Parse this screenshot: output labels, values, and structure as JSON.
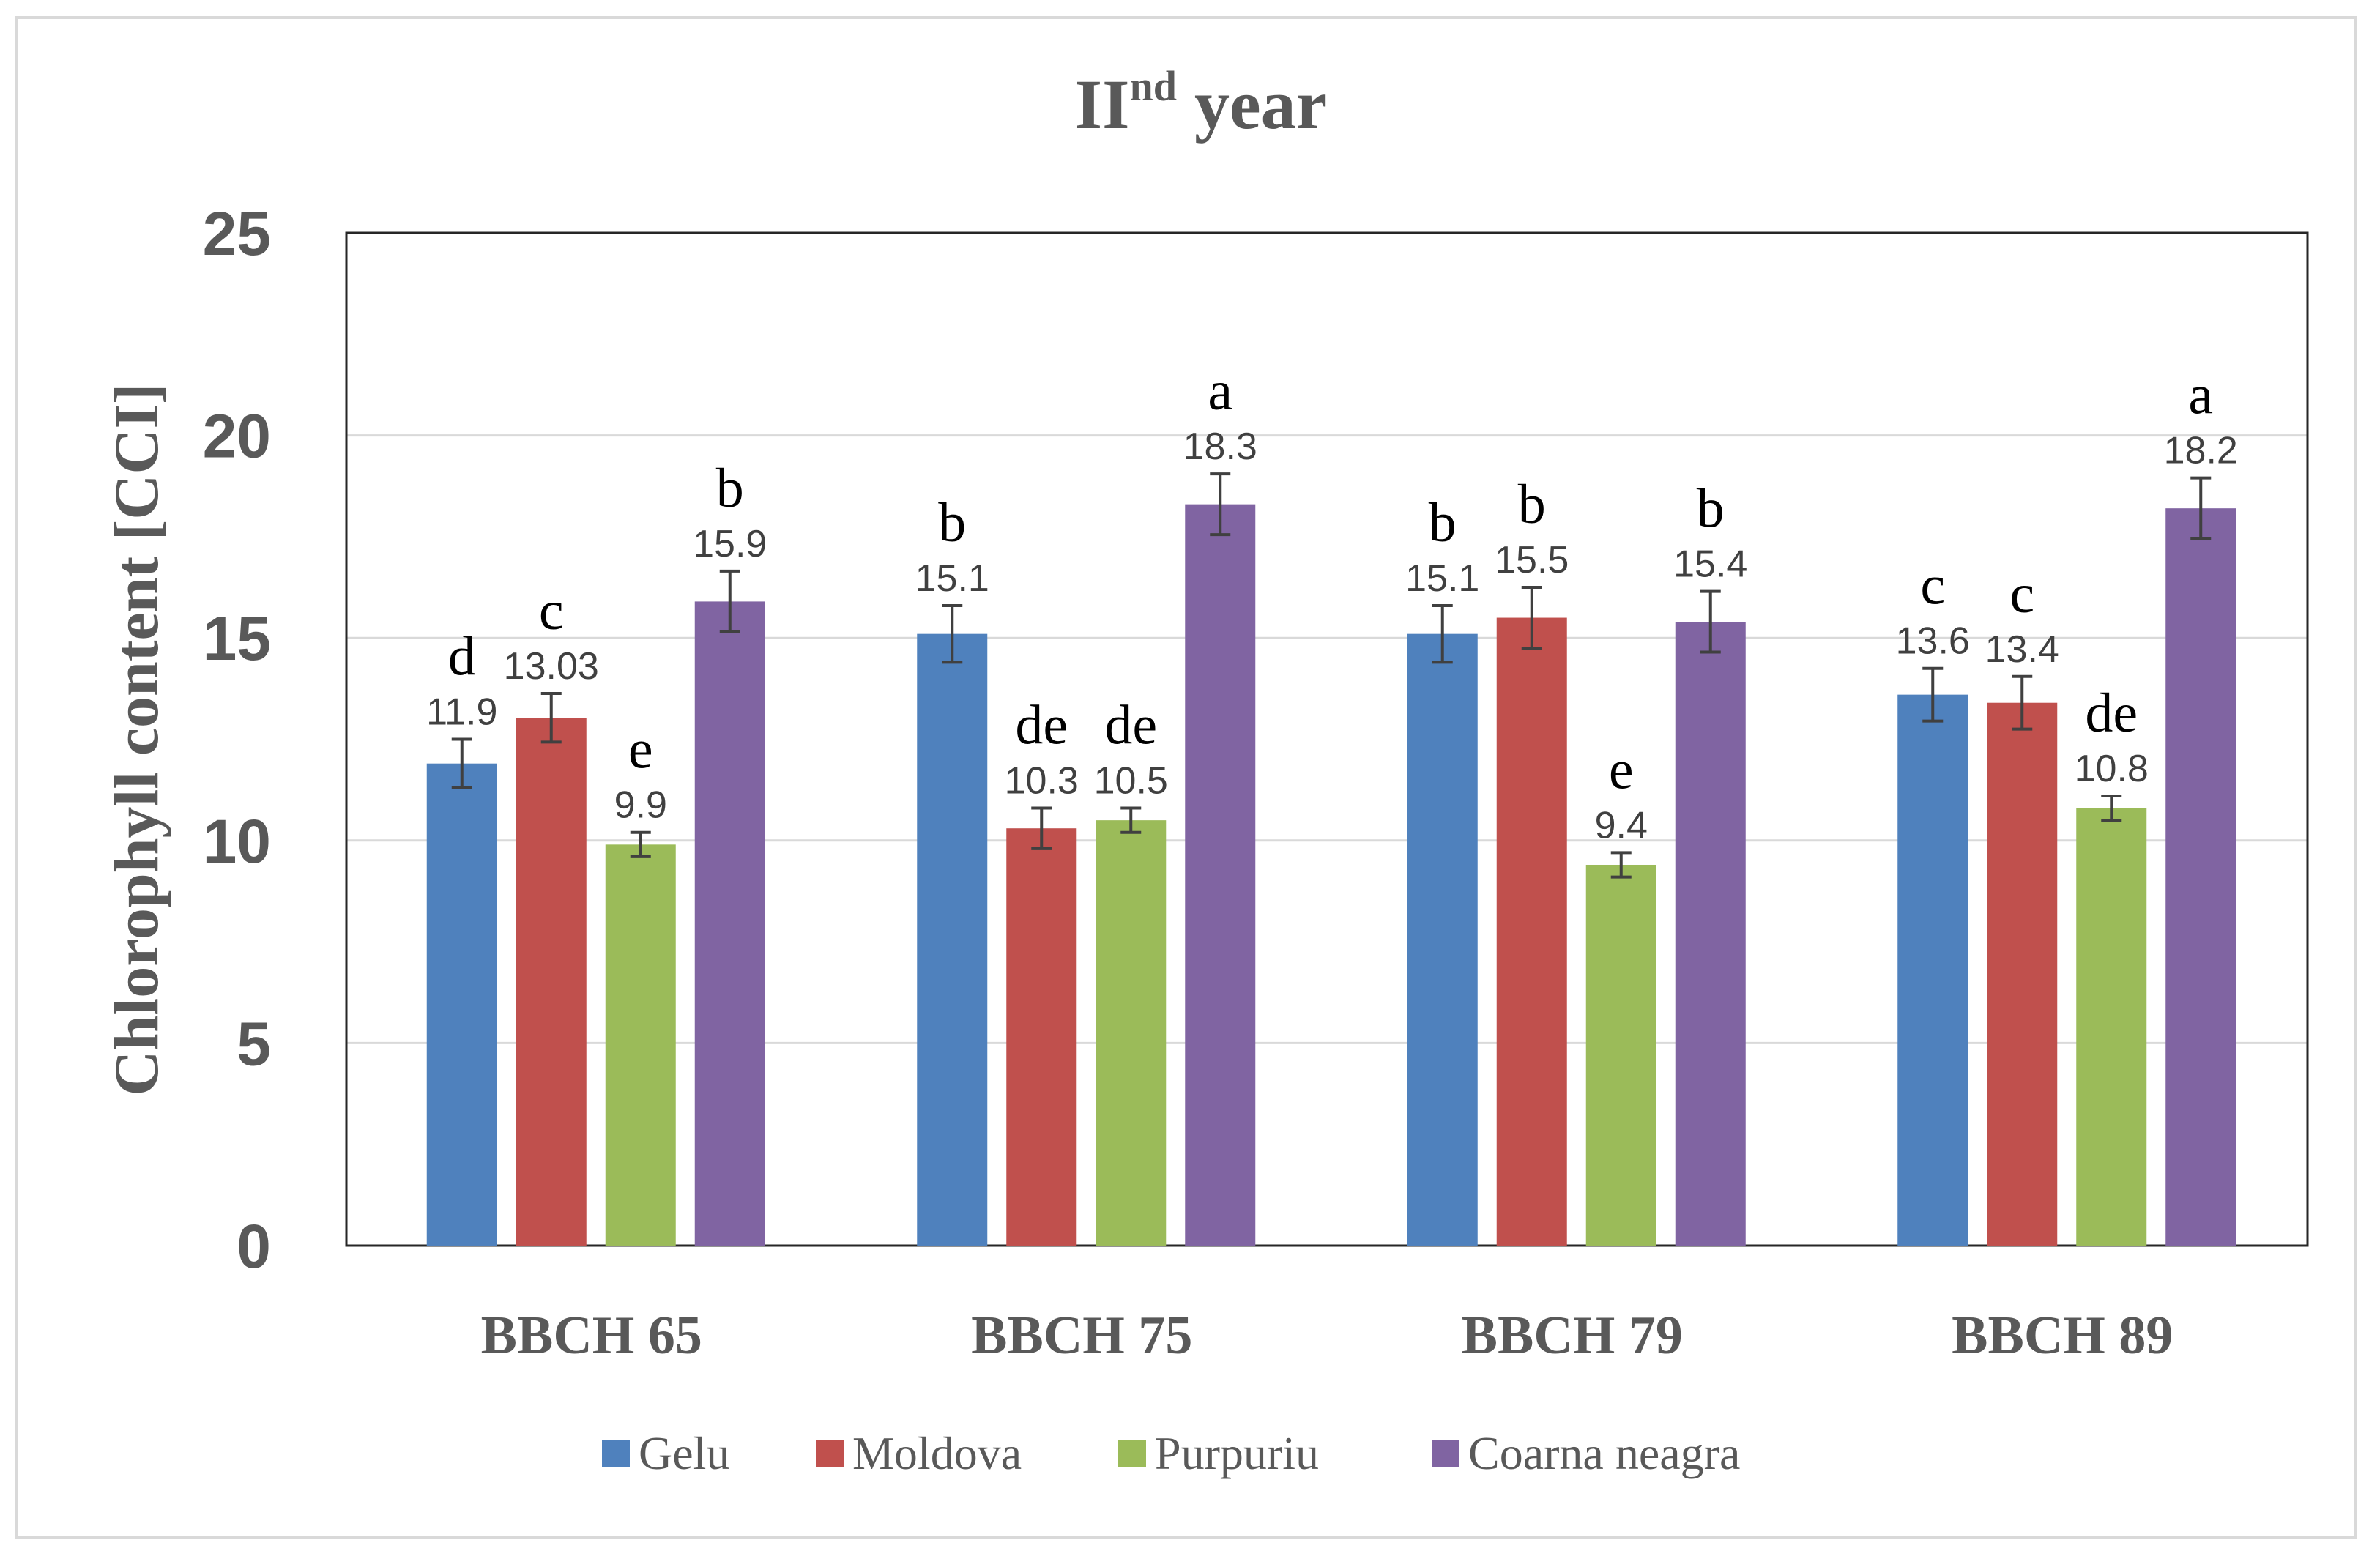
{
  "chart_data": {
    "type": "bar",
    "title": "II",
    "title_superscript": "nd",
    "title_suffix": " year",
    "xlabel": "",
    "ylabel": "Chlorophyll content [CCI]",
    "ylim": [
      0,
      25
    ],
    "yticks": [
      0,
      5,
      10,
      15,
      20,
      25
    ],
    "grid": true,
    "legend_position": "bottom",
    "categories": [
      "BBCH 65",
      "BBCH 75",
      "BBCH 79",
      "BBCH 89"
    ],
    "series": [
      {
        "name": "Gelu",
        "color": "#4f81bd",
        "values": [
          11.9,
          15.1,
          15.1,
          13.6
        ],
        "labels": [
          "11.9",
          "15.1",
          "15.1",
          "13.6"
        ],
        "errors": [
          0.6,
          0.7,
          0.7,
          0.65
        ],
        "letters": [
          "d",
          "b",
          "b",
          "c"
        ]
      },
      {
        "name": "Moldova",
        "color": "#c0504d",
        "values": [
          13.03,
          10.3,
          15.5,
          13.4
        ],
        "labels": [
          "13.03",
          "10.3",
          "15.5",
          "13.4"
        ],
        "errors": [
          0.6,
          0.5,
          0.75,
          0.65
        ],
        "letters": [
          "c",
          "de",
          "b",
          "c"
        ]
      },
      {
        "name": "Purpuriu",
        "color": "#9bbb59",
        "values": [
          9.9,
          10.5,
          9.4,
          10.8
        ],
        "labels": [
          "9.9",
          "10.5",
          "9.4",
          "10.8"
        ],
        "errors": [
          0.3,
          0.3,
          0.3,
          0.3
        ],
        "letters": [
          "e",
          "de",
          "e",
          "de"
        ]
      },
      {
        "name": "Coarna neagra",
        "color": "#8064a2",
        "values": [
          15.9,
          18.3,
          15.4,
          18.2
        ],
        "labels": [
          "15.9",
          "18.3",
          "15.4",
          "18.2"
        ],
        "errors": [
          0.75,
          0.75,
          0.75,
          0.75
        ],
        "letters": [
          "b",
          "a",
          "b",
          "a"
        ]
      }
    ]
  }
}
